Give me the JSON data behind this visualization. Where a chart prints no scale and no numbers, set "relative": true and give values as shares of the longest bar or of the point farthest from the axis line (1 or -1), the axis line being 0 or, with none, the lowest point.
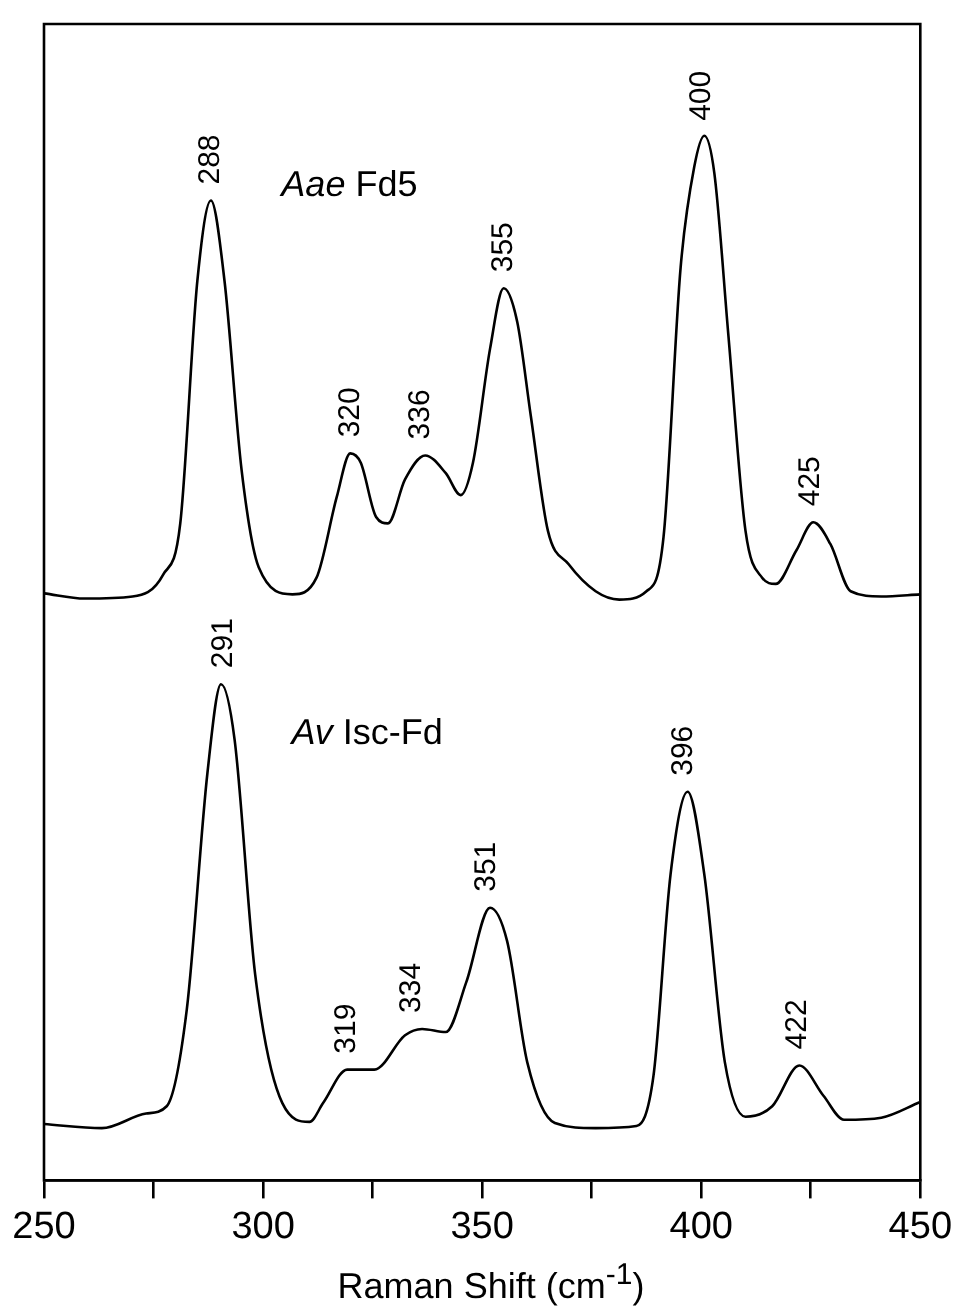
{
  "chart_data": {
    "type": "line",
    "relative": true,
    "xlabel": "Raman Shift (cm$^{-1}$)",
    "xlim": [
      250,
      450
    ],
    "xticks": [
      250,
      {
        "value": 275,
        "label": null
      },
      300,
      {
        "value": 325,
        "label": null
      },
      350,
      {
        "value": 375,
        "label": null
      },
      400,
      {
        "value": 425,
        "label": null
      },
      450
    ],
    "grid": false,
    "legend": false,
    "marker": "none",
    "line_style": "solid",
    "series": [
      {
        "name": "Aae Fd5",
        "color": "#000000",
        "x": [
          250,
          259.3,
          270.2,
          277.2,
          281.1,
          285.0,
          288.1,
          291.2,
          295.1,
          299.0,
          306.7,
          312.2,
          316.8,
          319.9,
          322.3,
          325.8,
          328.5,
          332.4,
          337.0,
          341.7,
          345.1,
          347.9,
          351.8,
          354.9,
          358.0,
          361.1,
          365.0,
          369.7,
          375.9,
          381.3,
          387.5,
          391.4,
          395.3,
          398.4,
          400.7,
          403.0,
          406.2,
          410.1,
          413.9,
          417.0,
          421.7,
          425.6,
          429.5,
          434.1,
          441.1,
          450
        ],
        "values": [
          0.562,
          0.557,
          0.559,
          0.58,
          0.629,
          0.861,
          0.938,
          0.861,
          0.68,
          0.587,
          0.561,
          0.577,
          0.654,
          0.696,
          0.687,
          0.635,
          0.629,
          0.671,
          0.694,
          0.677,
          0.656,
          0.687,
          0.796,
          0.854,
          0.822,
          0.732,
          0.622,
          0.59,
          0.564,
          0.556,
          0.564,
          0.616,
          0.874,
          0.97,
          1,
          0.964,
          0.809,
          0.622,
          0.577,
          0.571,
          0.603,
          0.63,
          0.609,
          0.564,
          0.559,
          0.561
        ]
      },
      {
        "name": "Av Isc-Fd",
        "color": "#000000",
        "x": [
          250,
          263.2,
          273.3,
          278.0,
          282.6,
          287.3,
          290.4,
          293.5,
          298.2,
          304.4,
          310.6,
          313.7,
          319.2,
          325.4,
          332.4,
          336.3,
          341.7,
          346.4,
          351.8,
          355.7,
          360.3,
          366.6,
          375.9,
          385.2,
          389.1,
          393.0,
          396.9,
          400.7,
          405.4,
          410.1,
          416.2,
          422.4,
          427.9,
          432.6,
          441.1,
          450
        ],
        "values": [
          0.054,
          0.05,
          0.064,
          0.071,
          0.164,
          0.39,
          0.475,
          0.422,
          0.197,
          0.074,
          0.056,
          0.074,
          0.106,
          0.106,
          0.139,
          0.145,
          0.142,
          0.19,
          0.261,
          0.229,
          0.113,
          0.055,
          0.05,
          0.052,
          0.1,
          0.293,
          0.372,
          0.293,
          0.113,
          0.061,
          0.071,
          0.11,
          0.081,
          0.058,
          0.06,
          0.075
        ]
      }
    ],
    "annotations": [
      {
        "text": "288",
        "x": 288,
        "y": 0.938
      },
      {
        "text": "320",
        "x": 320,
        "y": 0.696
      },
      {
        "text": "336",
        "x": 336,
        "y": 0.694
      },
      {
        "text": "355",
        "x": 355,
        "y": 0.854
      },
      {
        "text": "400",
        "x": 400,
        "y": 0.999
      },
      {
        "text": "425",
        "x": 425,
        "y": 0.63
      },
      {
        "text": "291",
        "x": 291,
        "y": 0.475
      },
      {
        "text": "319",
        "x": 319,
        "y": 0.106
      },
      {
        "text": "334",
        "x": 334,
        "y": 0.145
      },
      {
        "text": "351",
        "x": 351,
        "y": 0.261
      },
      {
        "text": "396",
        "x": 396,
        "y": 0.372
      },
      {
        "text": "422",
        "x": 422,
        "y": 0.11
      }
    ]
  }
}
